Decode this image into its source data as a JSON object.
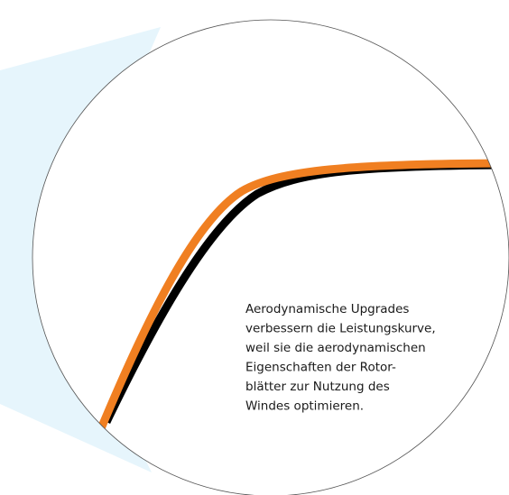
{
  "note": {
    "lines": [
      "Aerodynamische Upgrades",
      "verbessern die Leistungskurve,",
      "weil sie die aerodynamischen",
      "Eigenschaften der Rotor-",
      "blätter zur Nutzung des",
      "Windes optimieren."
    ]
  }
}
